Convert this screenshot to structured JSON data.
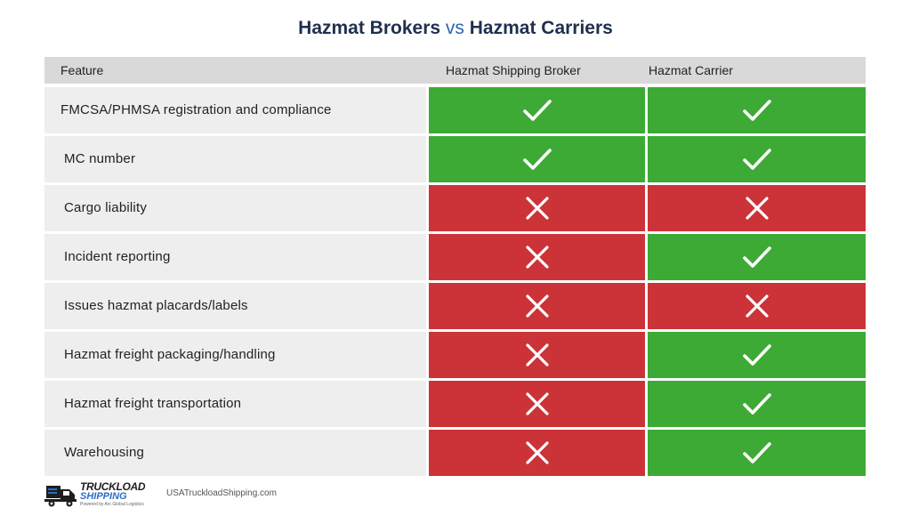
{
  "title": {
    "left": "Hazmat Brokers",
    "vs": "vs",
    "right": "Hazmat Carriers"
  },
  "columns": {
    "feature": "Feature",
    "broker": "Hazmat Shipping Broker",
    "carrier": "Hazmat Carrier"
  },
  "rows": [
    {
      "feature": "FMCSA/PHMSA registration and compliance",
      "broker": true,
      "carrier": true
    },
    {
      "feature": "MC number",
      "broker": true,
      "carrier": true
    },
    {
      "feature": "Cargo liability",
      "broker": false,
      "carrier": false
    },
    {
      "feature": "Incident reporting",
      "broker": false,
      "carrier": true
    },
    {
      "feature": "Issues hazmat placards/labels",
      "broker": false,
      "carrier": false
    },
    {
      "feature": "Hazmat freight packaging/handling",
      "broker": false,
      "carrier": true
    },
    {
      "feature": "Hazmat freight transportation",
      "broker": false,
      "carrier": true
    },
    {
      "feature": "Warehousing",
      "broker": false,
      "carrier": true
    }
  ],
  "colors": {
    "yes": "#3daa36",
    "no": "#cc3339",
    "header": "#d9d9d9",
    "feature_bg": "#eeeeee"
  },
  "icons": {
    "yes": "checkmark-icon",
    "no": "x-mark-icon"
  },
  "footer": {
    "brand_main": "TRUCKLOAD",
    "brand_sub": "SHIPPING",
    "brand_tag": "Powered by Arc Global Logistics",
    "website": "USATruckloadShipping.com"
  }
}
